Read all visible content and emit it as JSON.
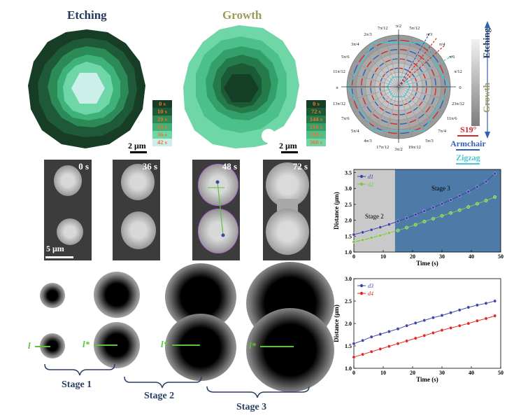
{
  "titles": {
    "etching": "Etching",
    "growth": "Growth"
  },
  "colors": {
    "etching_title": "#243a5c",
    "growth_title": "#9a9a5a",
    "blue": "#2f5fb6",
    "red": "#d32a2a",
    "cyan": "#4bc6d6"
  },
  "etching_legend": [
    "0 s",
    "10 s",
    "20 s",
    "30 s",
    "36 s",
    "42 s"
  ],
  "growth_legend": [
    "0 s",
    "72 s",
    "144 s",
    "216 s",
    "288 s",
    "360 s"
  ],
  "scalebar_2um": "2 μm",
  "scalebar_5um": "5 μm",
  "polar": {
    "angle_labels": [
      "π/2",
      "5π/12",
      "π/3",
      "π/4",
      "π/6",
      "π/12",
      "0",
      "23π/12",
      "11π/6",
      "7π/4",
      "5π/3",
      "19π/12",
      "3π/2",
      "17π/12",
      "4π/3",
      "5π/4",
      "7π/6",
      "13π/12",
      "π",
      "11π/12",
      "5π/6",
      "3π/4",
      "2π/3",
      "7π/12"
    ],
    "side_top": "Etching",
    "side_bottom": "Growth",
    "s19": "S19°",
    "armchair": "Armchair",
    "zigzag": "Zigzag"
  },
  "micro_times": [
    "0 s",
    "36 s",
    "48 s",
    "72 s"
  ],
  "stages": [
    "Stage 1",
    "Stage 2",
    "Stage 3"
  ],
  "sim_labels": [
    "l",
    "l*",
    "l*",
    "l*"
  ],
  "chart_data": [
    {
      "type": "line",
      "xlabel": "Time (s)",
      "ylabel": "Distance (μm)",
      "xlim": [
        0,
        50
      ],
      "ylim": [
        1.0,
        3.6
      ],
      "xticks": [
        0,
        10,
        20,
        30,
        40,
        50
      ],
      "yticks": [
        1.0,
        1.5,
        2.0,
        2.5,
        3.0,
        3.5
      ],
      "regions": [
        {
          "label": "Stage 2",
          "x": [
            0,
            14
          ],
          "color": "#c9c9c9"
        },
        {
          "label": "Stage 3",
          "x": [
            14,
            50
          ],
          "color": "#4d7aa7"
        }
      ],
      "legend": "top-left",
      "series": [
        {
          "name": "d1",
          "color": "#3e44a8",
          "x": [
            0,
            3,
            6,
            9,
            12,
            15,
            18,
            21,
            24,
            27,
            30,
            33,
            36,
            39,
            42,
            45,
            48
          ],
          "y": [
            1.55,
            1.62,
            1.7,
            1.78,
            1.87,
            1.97,
            2.07,
            2.18,
            2.29,
            2.4,
            2.52,
            2.64,
            2.77,
            2.9,
            3.05,
            3.22,
            3.47
          ]
        },
        {
          "name": "d2",
          "color": "#7ac943",
          "x": [
            0,
            3,
            6,
            9,
            12,
            15,
            18,
            21,
            24,
            27,
            30,
            33,
            36,
            39,
            42,
            45,
            48
          ],
          "y": [
            1.32,
            1.38,
            1.45,
            1.52,
            1.6,
            1.68,
            1.77,
            1.86,
            1.96,
            2.05,
            2.14,
            2.23,
            2.32,
            2.42,
            2.52,
            2.62,
            2.73
          ]
        }
      ]
    },
    {
      "type": "line",
      "xlabel": "Time (s)",
      "ylabel": "Distance (μm)",
      "xlim": [
        0,
        50
      ],
      "ylim": [
        1.0,
        3.0
      ],
      "xticks": [
        0,
        10,
        20,
        30,
        40,
        50
      ],
      "yticks": [
        1.0,
        1.5,
        2.0,
        2.5,
        3.0
      ],
      "legend": "top-left",
      "series": [
        {
          "name": "d3",
          "color": "#3e44a8",
          "x": [
            0,
            3,
            6,
            9,
            12,
            15,
            18,
            21,
            24,
            27,
            30,
            33,
            36,
            39,
            42,
            45,
            48
          ],
          "y": [
            1.55,
            1.62,
            1.7,
            1.76,
            1.82,
            1.88,
            1.95,
            2.01,
            2.07,
            2.13,
            2.18,
            2.24,
            2.3,
            2.36,
            2.41,
            2.45,
            2.5
          ]
        },
        {
          "name": "d4",
          "color": "#e02828",
          "x": [
            0,
            3,
            6,
            9,
            12,
            15,
            18,
            21,
            24,
            27,
            30,
            33,
            36,
            39,
            42,
            45,
            48
          ],
          "y": [
            1.25,
            1.31,
            1.37,
            1.43,
            1.49,
            1.55,
            1.61,
            1.67,
            1.73,
            1.79,
            1.85,
            1.9,
            1.95,
            2.0,
            2.06,
            2.11,
            2.17
          ]
        }
      ]
    }
  ]
}
